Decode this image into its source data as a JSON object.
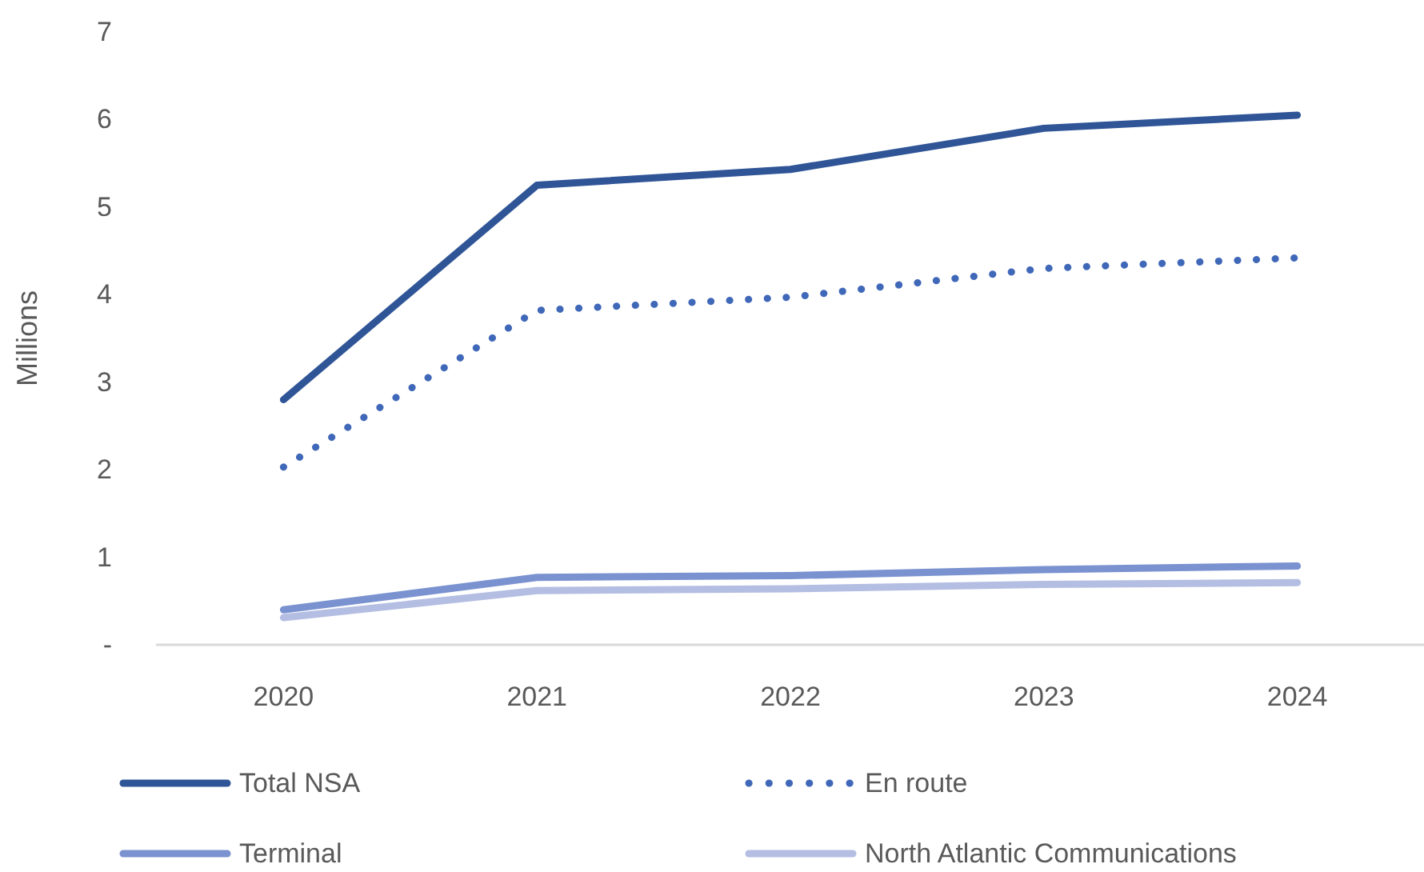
{
  "chart_data": {
    "type": "line",
    "ylabel": "Millions",
    "categories": [
      "2020",
      "2021",
      "2022",
      "2023",
      "2024"
    ],
    "series": [
      {
        "name": "Total NSA",
        "color": "#2f5597",
        "line_style": "solid",
        "values": [
          2.8,
          5.25,
          5.43,
          5.9,
          6.05
        ]
      },
      {
        "name": "En route",
        "color": "#4068b8",
        "line_style": "dotted",
        "values": [
          2.03,
          3.82,
          3.97,
          4.3,
          4.42
        ]
      },
      {
        "name": "Terminal",
        "color": "#7a92d0",
        "line_style": "solid",
        "values": [
          0.4,
          0.77,
          0.79,
          0.86,
          0.9
        ]
      },
      {
        "name": "North Atlantic Communications",
        "color": "#b3bee2",
        "line_style": "solid",
        "values": [
          0.31,
          0.62,
          0.64,
          0.69,
          0.71
        ]
      }
    ],
    "ylim": [
      0,
      7
    ],
    "yticks": [
      {
        "value": 0,
        "label": "-"
      },
      1,
      2,
      3,
      4,
      5,
      6,
      7
    ],
    "grid": false,
    "legend": "bottom",
    "marker": "none"
  }
}
